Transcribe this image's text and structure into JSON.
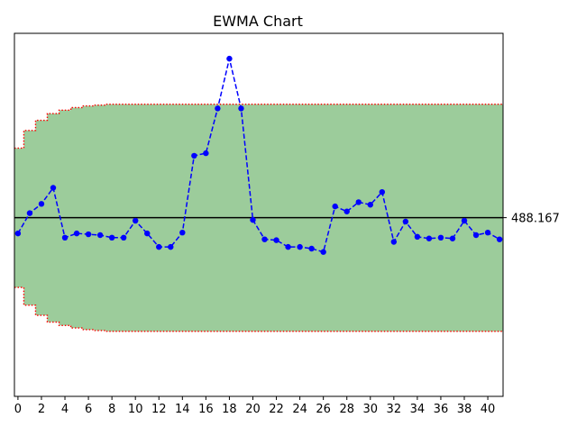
{
  "chart_data": {
    "type": "line",
    "title": "EWMA Chart",
    "xlabel": "",
    "ylabel": "",
    "xlim": [
      -0.3,
      41.3
    ],
    "ylim": [
      467.0,
      510.0
    ],
    "x_ticks": [
      0,
      2,
      4,
      6,
      8,
      10,
      12,
      14,
      16,
      18,
      20,
      22,
      24,
      26,
      28,
      30,
      32,
      34,
      36,
      38,
      40
    ],
    "x_tick_labels": [
      "0",
      "2",
      "4",
      "6",
      "8",
      "10",
      "12",
      "14",
      "16",
      "18",
      "20",
      "22",
      "24",
      "26",
      "28",
      "30",
      "32",
      "34",
      "36",
      "38",
      "40"
    ],
    "center_line": 488.167,
    "center_label": "488.167",
    "x": [
      0,
      1,
      2,
      3,
      4,
      5,
      6,
      7,
      8,
      9,
      10,
      11,
      12,
      13,
      14,
      15,
      16,
      17,
      18,
      19,
      20,
      21,
      22,
      23,
      24,
      25,
      26,
      27,
      28,
      29,
      30,
      31,
      32,
      33,
      34,
      35,
      36,
      37,
      38,
      39,
      40,
      41
    ],
    "ewma": [
      486.3,
      488.7,
      489.8,
      491.7,
      485.8,
      486.3,
      486.2,
      486.1,
      485.8,
      485.8,
      487.8,
      486.3,
      484.7,
      484.7,
      486.4,
      495.5,
      495.8,
      501.1,
      507.0,
      501.1,
      487.9,
      485.6,
      485.5,
      484.7,
      484.7,
      484.5,
      484.1,
      489.5,
      488.9,
      490.0,
      489.7,
      491.2,
      485.3,
      487.7,
      485.9,
      485.7,
      485.8,
      485.7,
      487.8,
      486.1,
      486.4,
      485.6
    ],
    "ucl": [
      496.4,
      498.5,
      499.7,
      500.5,
      500.9,
      501.2,
      501.4,
      501.5,
      501.6,
      501.6,
      501.6,
      501.6,
      501.6,
      501.6,
      501.6,
      501.6,
      501.6,
      501.6,
      501.6,
      501.6,
      501.6,
      501.6,
      501.6,
      501.6,
      501.6,
      501.6,
      501.6,
      501.6,
      501.6,
      501.6,
      501.6,
      501.6,
      501.6,
      501.6,
      501.6,
      501.6,
      501.6,
      501.6,
      501.6,
      501.6,
      501.6,
      501.6
    ],
    "lcl": [
      479.9,
      477.8,
      476.6,
      475.8,
      475.4,
      475.1,
      474.9,
      474.8,
      474.7,
      474.7,
      474.7,
      474.7,
      474.7,
      474.7,
      474.7,
      474.7,
      474.7,
      474.7,
      474.7,
      474.7,
      474.7,
      474.7,
      474.7,
      474.7,
      474.7,
      474.7,
      474.7,
      474.7,
      474.7,
      474.7,
      474.7,
      474.7,
      474.7,
      474.7,
      474.7,
      474.7,
      474.7,
      474.7,
      474.7,
      474.7,
      474.7,
      474.7
    ],
    "colors": {
      "band_fill": "#9ccc9b",
      "limit_line": "#ff0000",
      "series": "#0000ff",
      "center_line": "#000000"
    }
  }
}
